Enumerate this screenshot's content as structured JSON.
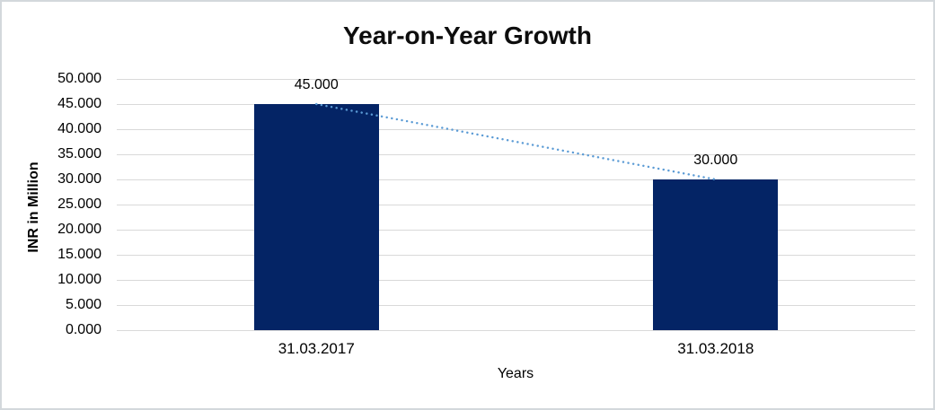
{
  "chart_data": {
    "type": "bar",
    "title": "Year-on-Year Growth",
    "xlabel": "Years",
    "ylabel": "INR in Million",
    "categories": [
      "31.03.2017",
      "31.03.2018"
    ],
    "values": [
      45,
      30
    ],
    "data_labels": [
      "45.000",
      "30.000"
    ],
    "y_ticks": [
      "0.000",
      "5.000",
      "10.000",
      "15.000",
      "20.000",
      "25.000",
      "30.000",
      "35.000",
      "40.000",
      "45.000",
      "50.000"
    ],
    "ylim": [
      0,
      50
    ],
    "grid": true,
    "legend": "none",
    "trendline": {
      "style": "dotted",
      "points": [
        45,
        30
      ],
      "color": "#5B9BD5"
    },
    "colors": {
      "bar": "#042465",
      "gridline": "#D9D9D9",
      "axis_text": "#000000",
      "title_text": "#0D0D0D"
    }
  }
}
